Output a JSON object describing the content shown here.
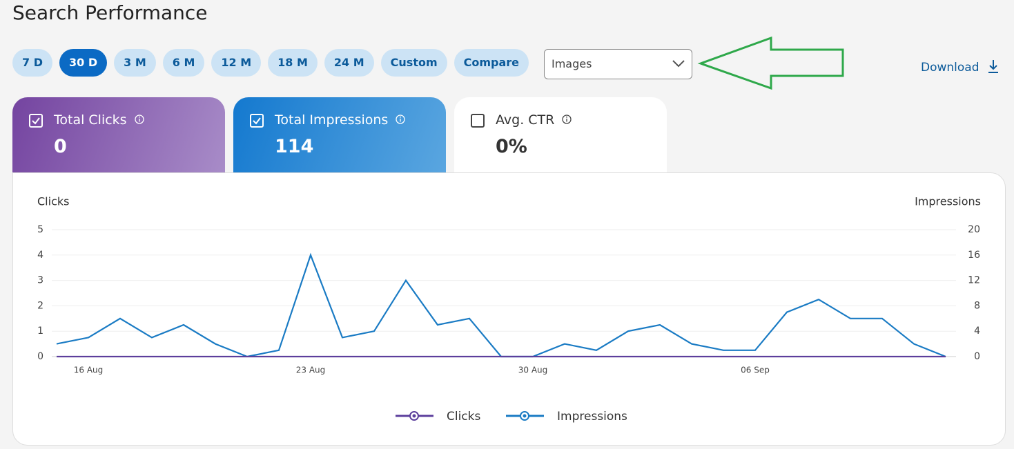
{
  "header": {
    "title": "Search Performance"
  },
  "filters": {
    "options": [
      "7 D",
      "30 D",
      "3 M",
      "6 M",
      "12 M",
      "18 M",
      "24 M",
      "Custom",
      "Compare"
    ],
    "active": 1
  },
  "dropdown": {
    "value": "Images"
  },
  "download": {
    "label": "Download"
  },
  "cards": [
    {
      "label": "Total Clicks",
      "value": "0",
      "checked": true
    },
    {
      "label": "Total Impressions",
      "value": "114",
      "checked": true
    },
    {
      "label": "Avg. CTR",
      "value": "0%",
      "checked": false
    }
  ],
  "chart_data": {
    "type": "line",
    "ylabel": "Clicks",
    "y2label": "Impressions",
    "categories": [
      null,
      "16 Aug",
      null,
      null,
      null,
      null,
      null,
      null,
      "23 Aug",
      null,
      null,
      null,
      null,
      null,
      null,
      "30 Aug",
      null,
      null,
      null,
      null,
      null,
      null,
      "06 Sep",
      null,
      null,
      null,
      null,
      null,
      null
    ],
    "series": [
      {
        "name": "Clicks",
        "color": "#5c3f9c",
        "axis": "y",
        "values": [
          0,
          0,
          0,
          0,
          0,
          0,
          0,
          0,
          0,
          0,
          0,
          0,
          0,
          0,
          0,
          0,
          0,
          0,
          0,
          0,
          0,
          0,
          0,
          0,
          0,
          0,
          0,
          0,
          0
        ]
      },
      {
        "name": "Impressions",
        "color": "#1a7bc4",
        "axis": "y2",
        "values": [
          2,
          3,
          6,
          3,
          5,
          2,
          0,
          1,
          16,
          3,
          4,
          12,
          5,
          6,
          0,
          0,
          2,
          1,
          4,
          5,
          2,
          1,
          1,
          7,
          9,
          6,
          6,
          2,
          0
        ]
      }
    ],
    "ylim": [
      0,
      5
    ],
    "yticks": [
      0,
      1,
      2,
      3,
      4,
      5
    ],
    "y2lim": [
      0,
      20
    ],
    "y2ticks": [
      0,
      4,
      8,
      12,
      16,
      20
    ],
    "grid": true
  }
}
